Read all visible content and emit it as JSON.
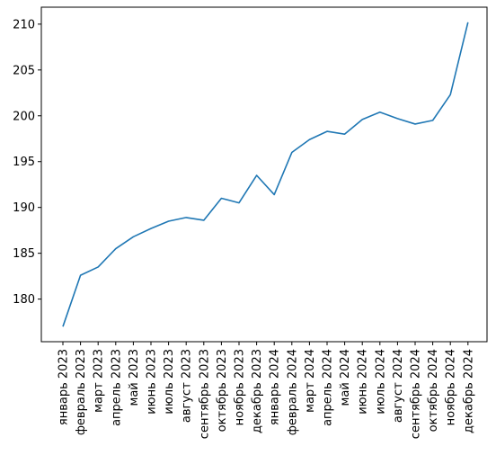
{
  "chart_data": {
    "type": "line",
    "title": "",
    "xlabel": "",
    "ylabel": "",
    "categories": [
      "январь 2023",
      "февраль 2023",
      "март 2023",
      "апрель 2023",
      "май 2023",
      "июнь 2023",
      "июль 2023",
      "август 2023",
      "сентябрь 2023",
      "октябрь 2023",
      "ноябрь 2023",
      "декабрь 2023",
      "январь 2024",
      "февраль 2024",
      "март 2024",
      "апрель 2024",
      "май 2024",
      "июнь 2024",
      "июль 2024",
      "август 2024",
      "сентябрь 2024",
      "октябрь 2024",
      "ноябрь 2024",
      "декабрь 2024"
    ],
    "values": [
      177.0,
      182.6,
      183.5,
      185.5,
      186.8,
      187.7,
      188.5,
      188.9,
      188.6,
      191.0,
      190.5,
      193.5,
      191.4,
      196.0,
      197.4,
      198.3,
      198.0,
      199.6,
      200.4,
      199.7,
      199.1,
      199.5,
      202.3,
      210.2
    ],
    "ylim": [
      175.35,
      211.85
    ],
    "yticks": [
      180,
      185,
      190,
      195,
      200,
      205,
      210
    ],
    "grid": false,
    "line_color": "#1f77b4"
  }
}
